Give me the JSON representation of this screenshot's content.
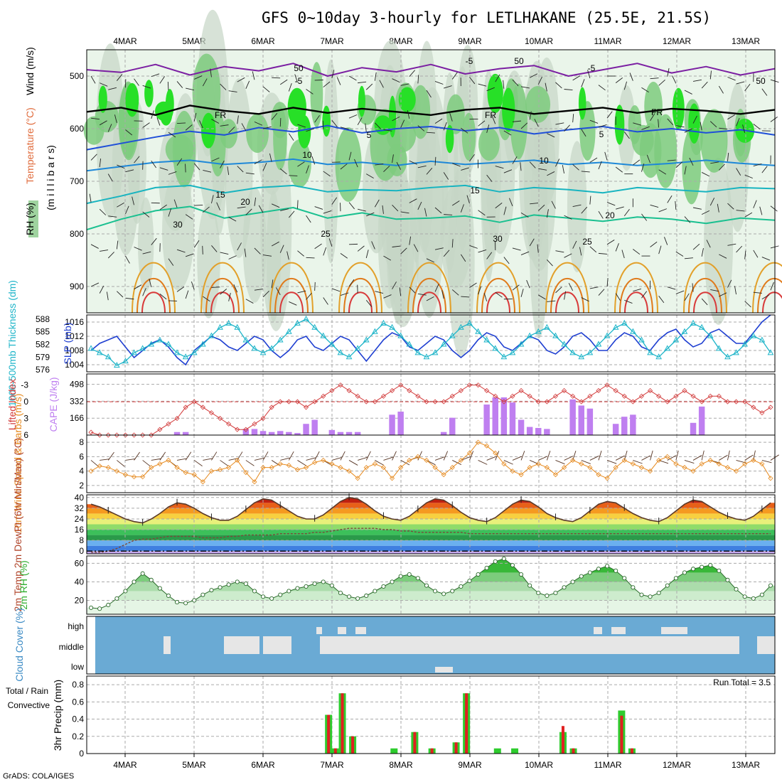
{
  "title": "GFS 0~10day 3-hourly for LETLHAKANE (25.5E, 21.5S)",
  "footer": "GrADS: COLA/IGES",
  "colors": {
    "rh_green": "#33cc33",
    "temp_purple": "#7b1fa2",
    "slp_blue": "#1f3fd1",
    "thick_cyan": "#1fb5c9",
    "lifted_red": "#d23a3a",
    "cape_violet": "#bf7ff0",
    "wind_orange": "#e68a1f",
    "cloud_blue": "#6aaad4",
    "precip_green": "#2ecc2e",
    "precip_red": "#e02020"
  },
  "chart_data": [
    {
      "type": "heatmap",
      "panel": "upper-air",
      "ylabel_parts": [
        "RH (%)",
        "Temperature (°C)",
        "Wind (m/s)",
        "(m i l l i b a r s)"
      ],
      "x_ticks": [
        "4MAR",
        "5MAR",
        "6MAR",
        "7MAR",
        "8MAR",
        "9MAR",
        "10MAR",
        "11MAR",
        "12MAR",
        "13MAR"
      ],
      "y_ticks": [
        500,
        600,
        700,
        800,
        900
      ],
      "ylim": [
        950,
        450
      ],
      "contour_labels": [
        "-5",
        "-5",
        "-5",
        "FR",
        "FR",
        "FR",
        "5",
        "5",
        "10",
        "10",
        "15",
        "15",
        "20",
        "20",
        "25",
        "25",
        "50",
        "50",
        "50",
        "30",
        "30"
      ],
      "temp_levels": [
        {
          "label": "-5",
          "color": "#7b1fa2",
          "p": [
            488,
            493,
            478,
            498,
            482,
            490,
            476,
            500,
            484,
            492,
            478,
            496,
            486,
            480,
            500,
            488,
            476,
            494,
            482,
            498,
            486
          ]
        },
        {
          "label": "FR",
          "color": "#000000",
          "p": [
            568,
            560,
            574,
            556,
            566,
            572,
            560,
            570,
            562,
            568,
            574,
            564,
            560,
            572,
            566,
            560,
            570,
            562,
            566,
            572,
            564
          ]
        },
        {
          "label": "5",
          "color": "#1f4fd8",
          "p": [
            640,
            628,
            616,
            605,
            612,
            598,
            606,
            594,
            608,
            600,
            596,
            604,
            598,
            610,
            602,
            596,
            606,
            600,
            608,
            602,
            612
          ]
        },
        {
          "label": "10",
          "color": "#1e88d8",
          "p": [
            680,
            672,
            664,
            660,
            668,
            664,
            658,
            668,
            664,
            670,
            662,
            668,
            664,
            660,
            668,
            664,
            670,
            666,
            660,
            666,
            670
          ]
        },
        {
          "label": "15",
          "color": "#18b4c0",
          "p": [
            742,
            728,
            712,
            708,
            722,
            712,
            708,
            720,
            716,
            718,
            712,
            708,
            720,
            712,
            716,
            722,
            712,
            716,
            720,
            712,
            714
          ]
        },
        {
          "label": "20",
          "color": "#1ac090",
          "p": [
            792,
            772,
            756,
            748,
            770,
            760,
            750,
            770,
            760,
            772,
            770,
            766,
            778,
            764,
            770,
            776,
            768,
            772,
            780,
            770,
            774
          ]
        }
      ]
    },
    {
      "type": "line",
      "panel": "slp-thickness",
      "ylabel_left": "1000-500mb Thickness (dm)",
      "ylabel_right": "SLP (mb)",
      "y_ticks_left": [
        576,
        579,
        582,
        585,
        588
      ],
      "y_ticks_right": [
        1004,
        1008,
        1012,
        1016
      ],
      "series": [
        {
          "name": "SLP",
          "color": "#1f3fd1",
          "axis": "right",
          "ylim": [
            1002,
            1018
          ],
          "values": [
            1008,
            1010,
            1011,
            1012,
            1009,
            1006,
            1008,
            1010,
            1011,
            1009,
            1006,
            1004,
            1008,
            1010,
            1012,
            1011,
            1009,
            1008,
            1010,
            1012,
            1011,
            1008,
            1006,
            1008,
            1011,
            1012,
            1009,
            1008,
            1010,
            1012,
            1011,
            1008,
            1005,
            1008,
            1011,
            1013,
            1012,
            1009,
            1008,
            1010,
            1012,
            1011,
            1008,
            1006,
            1008,
            1011,
            1013,
            1012,
            1009,
            1008,
            1010,
            1012,
            1011,
            1008,
            1007,
            1009,
            1012,
            1013,
            1011,
            1008,
            1008,
            1011,
            1013,
            1012,
            1009,
            1008,
            1011,
            1013,
            1014,
            1011,
            1009,
            1010,
            1013,
            1014,
            1012,
            1010,
            1010,
            1013,
            1016,
            1018
          ]
        },
        {
          "name": "Thickness",
          "color": "#1fb5c9",
          "axis": "left",
          "ylim": [
            575.5,
            589
          ],
          "values": [
            581,
            580,
            579,
            577,
            578,
            580,
            581,
            582,
            583,
            582,
            580,
            579,
            580,
            582,
            584,
            586,
            587,
            586,
            583,
            581,
            580,
            581,
            583,
            585,
            587,
            588,
            586,
            584,
            582,
            580,
            579,
            581,
            583,
            585,
            587,
            586,
            584,
            582,
            580,
            579,
            580,
            582,
            584,
            586,
            587,
            585,
            583,
            581,
            579,
            580,
            582,
            584,
            585,
            586,
            584,
            582,
            580,
            579,
            580,
            582,
            584,
            586,
            587,
            585,
            583,
            580,
            579,
            581,
            583,
            585,
            587,
            586,
            584,
            581,
            579,
            580,
            582,
            584,
            583,
            580
          ]
        }
      ]
    },
    {
      "type": "bar",
      "panel": "cape-lifted",
      "ylabel_left": "Lifted Index",
      "ylabel_right": "CAPE (J/kg)",
      "y_ticks_left": [
        "-3",
        "0",
        "3",
        "6"
      ],
      "y_ticks_right": [
        166,
        332,
        498
      ],
      "cape_values": [
        0,
        0,
        0,
        0,
        0,
        0,
        0,
        0,
        0,
        0,
        30,
        30,
        0,
        0,
        0,
        0,
        0,
        0,
        60,
        60,
        40,
        30,
        40,
        30,
        20,
        110,
        150,
        0,
        50,
        30,
        30,
        30,
        0,
        0,
        0,
        200,
        230,
        0,
        0,
        0,
        0,
        30,
        170,
        0,
        0,
        0,
        300,
        370,
        370,
        320,
        150,
        80,
        70,
        60,
        0,
        0,
        350,
        290,
        260,
        0,
        0,
        110,
        180,
        200,
        0,
        0,
        0,
        0,
        0,
        0,
        120,
        280,
        0,
        0,
        0,
        0,
        0,
        0,
        0,
        0
      ],
      "lifted_values": [
        5.5,
        6,
        6,
        6,
        6,
        6,
        6,
        6,
        5,
        4,
        3,
        1,
        0,
        1,
        2,
        3,
        4,
        5,
        5,
        4,
        3,
        1,
        0,
        0,
        0,
        1,
        0,
        -1,
        -2,
        -3,
        -2,
        -1,
        0,
        0,
        -1,
        -2,
        -3,
        -2,
        -1,
        0,
        0,
        0,
        -1,
        -2,
        -3,
        -3,
        -2,
        -1,
        0,
        -1,
        -2,
        -1,
        0,
        0,
        -1,
        -2,
        -1,
        0,
        -1,
        -2,
        -3,
        -2,
        -1,
        0,
        -1,
        -2,
        -1,
        0,
        -1,
        -2,
        -1,
        0,
        -1,
        -1,
        0,
        0,
        0,
        1,
        2,
        1
      ]
    },
    {
      "type": "line",
      "panel": "wind10m",
      "ylabel": "10m Wind Speed & Barbs (m/s)",
      "y_ticks": [
        2,
        4,
        6,
        8
      ],
      "ylim": [
        1,
        9
      ],
      "series": [
        {
          "name": "10m Wind Speed",
          "color": "#e68a1f",
          "values": [
            4,
            4.7,
            4.5,
            4,
            3.5,
            3.2,
            3.2,
            4.5,
            5,
            5.5,
            4.5,
            3.8,
            3.5,
            2.5,
            4,
            4.2,
            4.5,
            5.5,
            3.8,
            2.5,
            4.5,
            4.5,
            5,
            4.8,
            4.2,
            4.5,
            5.2,
            5.5,
            5,
            4.5,
            4,
            3,
            4.5,
            5,
            4.5,
            3,
            4.5,
            5.5,
            6,
            5.5,
            4.5,
            3.5,
            4.5,
            5.5,
            6.5,
            8,
            7.5,
            6.5,
            5,
            4,
            3.5,
            4.5,
            5,
            4.5,
            3.5,
            4.5,
            5.5,
            5,
            4.5,
            3.5,
            3,
            4.5,
            5.5,
            5,
            4.5,
            4,
            5.5,
            6,
            5,
            4.5,
            4,
            5,
            5.5,
            5,
            4.5,
            4,
            5,
            5.5,
            5,
            3
          ]
        }
      ]
    },
    {
      "type": "area",
      "panel": "temp2m",
      "ylabel": "2m Temp 2m DewPt (6hr Min/Max) (°C)",
      "y_ticks": [
        0,
        8,
        16,
        24,
        32,
        40
      ],
      "ylim": [
        -2,
        42
      ],
      "series": [
        {
          "name": "2m Temp",
          "values": [
            35,
            33,
            30,
            27,
            24,
            22,
            21,
            24,
            28,
            33,
            36,
            35,
            32,
            28,
            25,
            23,
            23,
            26,
            31,
            36,
            39,
            38,
            34,
            30,
            26,
            24,
            24,
            27,
            32,
            37,
            40,
            39,
            35,
            30,
            26,
            24,
            23,
            26,
            31,
            36,
            39,
            38,
            34,
            29,
            25,
            23,
            22,
            25,
            30,
            35,
            38,
            37,
            33,
            28,
            25,
            23,
            22,
            25,
            30,
            35,
            37,
            36,
            32,
            28,
            25,
            23,
            22,
            25,
            30,
            35,
            38,
            37,
            33,
            29,
            26,
            24,
            23,
            26,
            31,
            36
          ]
        },
        {
          "name": "2m DewPt",
          "values": [
            -1,
            -1,
            0,
            2,
            5,
            8,
            9,
            9,
            10,
            11,
            11,
            11,
            11,
            10,
            10,
            10,
            11,
            11,
            12,
            12,
            12,
            12,
            13,
            13,
            13,
            13,
            14,
            14,
            15,
            16,
            17,
            17,
            17,
            17,
            16,
            16,
            15,
            15,
            14,
            14,
            14,
            14,
            14,
            14,
            13,
            13,
            13,
            13,
            13,
            13,
            13,
            13,
            13,
            13,
            13,
            13,
            13,
            13,
            13,
            13,
            13,
            13,
            13,
            13,
            13,
            13,
            13,
            13,
            13,
            13,
            13,
            13,
            13,
            13,
            13,
            13,
            13,
            13,
            13,
            13
          ]
        }
      ]
    },
    {
      "type": "area",
      "panel": "rh2m",
      "ylabel": "2m RH (%)",
      "y_ticks": [
        20,
        40,
        60
      ],
      "ylim": [
        5,
        68
      ],
      "series": [
        {
          "name": "2m RH",
          "values": [
            12,
            11,
            15,
            22,
            30,
            40,
            49,
            42,
            33,
            25,
            18,
            17,
            20,
            26,
            31,
            34,
            37,
            40,
            38,
            30,
            24,
            22,
            26,
            30,
            33,
            35,
            38,
            40,
            36,
            28,
            24,
            22,
            25,
            30,
            35,
            40,
            46,
            48,
            44,
            36,
            30,
            27,
            30,
            35,
            41,
            48,
            55,
            62,
            65,
            58,
            48,
            36,
            28,
            25,
            28,
            34,
            40,
            46,
            50,
            54,
            57,
            52,
            44,
            34,
            26,
            24,
            28,
            36,
            44,
            50,
            54,
            56,
            58,
            52,
            42,
            32,
            24,
            22,
            26,
            36
          ]
        }
      ]
    },
    {
      "type": "heatmap",
      "panel": "cloud",
      "ylabel": "Cloud Cover (%)",
      "y_ticks": [
        "high",
        "middle",
        "low"
      ]
    },
    {
      "type": "bar",
      "panel": "precip",
      "ylabel": "3hr Precip (mm)",
      "series_names": [
        "Total / Rain",
        "Convective"
      ],
      "annotation": "Run Total = 3.5",
      "y_ticks": [
        0,
        0.2,
        0.4,
        0.6,
        0.8
      ],
      "ylim": [
        0,
        0.9
      ],
      "x_ticks": [
        "4MAR",
        "5MAR",
        "6MAR",
        "7MAR",
        "8MAR",
        "9MAR",
        "10MAR",
        "11MAR",
        "12MAR",
        "13MAR"
      ],
      "bars": [
        {
          "x": 3.95,
          "total": 0.45,
          "conv": 0.45
        },
        {
          "x": 4.05,
          "total": 0.06,
          "conv": 0.06
        },
        {
          "x": 4.15,
          "total": 0.7,
          "conv": 0.7
        },
        {
          "x": 4.3,
          "total": 0.2,
          "conv": 0.2
        },
        {
          "x": 4.9,
          "total": 0.06,
          "conv": 0.0
        },
        {
          "x": 5.2,
          "total": 0.25,
          "conv": 0.25
        },
        {
          "x": 5.45,
          "total": 0.06,
          "conv": 0.06
        },
        {
          "x": 5.8,
          "total": 0.13,
          "conv": 0.13
        },
        {
          "x": 5.95,
          "total": 0.7,
          "conv": 0.7
        },
        {
          "x": 6.4,
          "total": 0.06,
          "conv": 0.0
        },
        {
          "x": 6.65,
          "total": 0.06,
          "conv": 0.0
        },
        {
          "x": 7.35,
          "total": 0.25,
          "conv": 0.32
        },
        {
          "x": 7.5,
          "total": 0.06,
          "conv": 0.06
        },
        {
          "x": 8.2,
          "total": 0.5,
          "conv": 0.44
        },
        {
          "x": 8.35,
          "total": 0.06,
          "conv": 0.06
        }
      ]
    }
  ]
}
